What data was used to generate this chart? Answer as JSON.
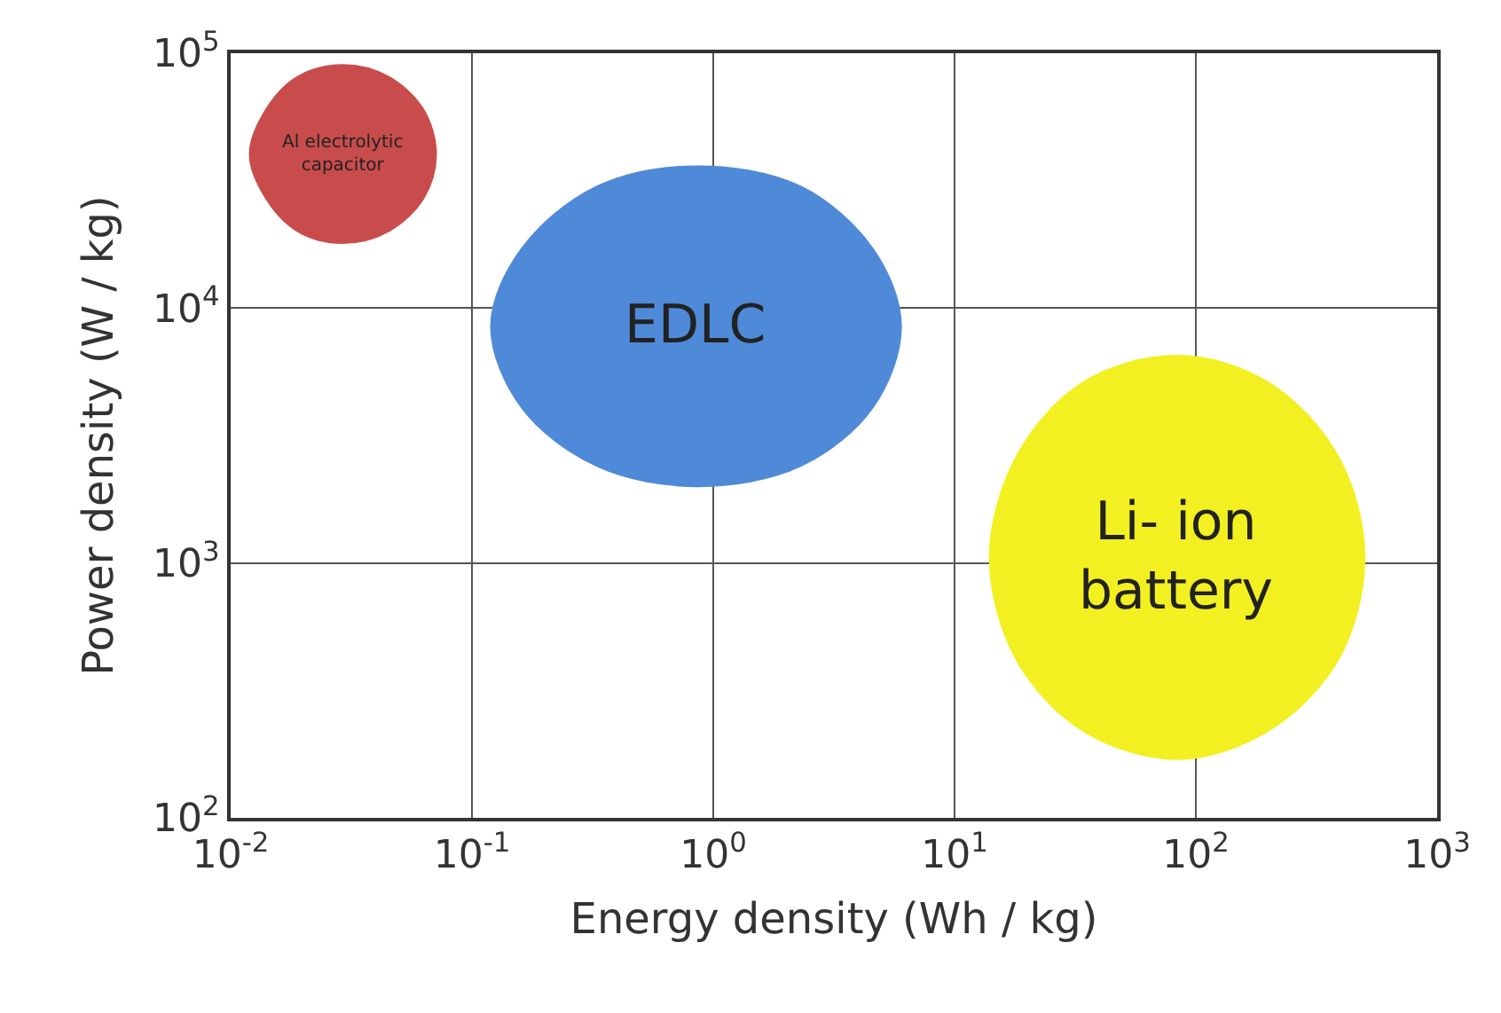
{
  "chart_data": {
    "type": "area",
    "xlabel": "Energy density (Wh / kg)",
    "ylabel": "Power density (W / kg)",
    "log": "xy",
    "grid": true,
    "legend": false,
    "series": [
      {
        "name": "Al electrolytic capacitor",
        "color": "#c94c4c",
        "x": [
          0.071,
          0.063,
          0.045,
          0.029,
          0.019,
          0.014,
          0.012,
          0.014,
          0.019,
          0.029,
          0.045,
          0.063,
          0.071
        ],
        "values": [
          40000,
          60000,
          81000,
          90000,
          81000,
          60000,
          40000,
          27000,
          20000,
          18000,
          20000,
          27000,
          40000
        ]
      },
      {
        "name": "EDLC",
        "color": "#4f8ad9",
        "x": [
          6.0,
          4.6,
          2.3,
          0.86,
          0.33,
          0.16,
          0.12,
          0.16,
          0.33,
          0.86,
          2.3,
          4.6,
          6.0
        ],
        "values": [
          8500,
          17000,
          30000,
          36000,
          30000,
          17000,
          8500,
          4100,
          2400,
          2000,
          2400,
          4100,
          8500
        ]
      },
      {
        "name": "Li- ion battery",
        "color": "#f2f020",
        "x": [
          500,
          390,
          200,
          84,
          34,
          18,
          14,
          18,
          34,
          84,
          200,
          390,
          500
        ],
        "values": [
          1050,
          2600,
          5100,
          6500,
          5100,
          2600,
          1050,
          420,
          220,
          170,
          220,
          420,
          1050
        ]
      }
    ],
    "xlim": [
      0.01,
      1000
    ],
    "ylim": [
      100,
      100000
    ],
    "xticks": [
      {
        "value": 0.01,
        "label": "10$^{-2}$"
      },
      {
        "value": 0.1,
        "label": "10$^{-1}$"
      },
      {
        "value": 1,
        "label": "10$^{0}$"
      },
      {
        "value": 10,
        "label": "10$^{1}$"
      },
      {
        "value": 100,
        "label": "10$^{2}$"
      },
      {
        "value": 1000,
        "label": "10$^{3}$"
      }
    ],
    "yticks": [
      {
        "value": 100,
        "label": "10$^{2}$"
      },
      {
        "value": 1000,
        "label": "10$^{3}$"
      },
      {
        "value": 10000,
        "label": "10$^{4}$"
      },
      {
        "value": 100000,
        "label": "10$^{5}$"
      }
    ]
  }
}
